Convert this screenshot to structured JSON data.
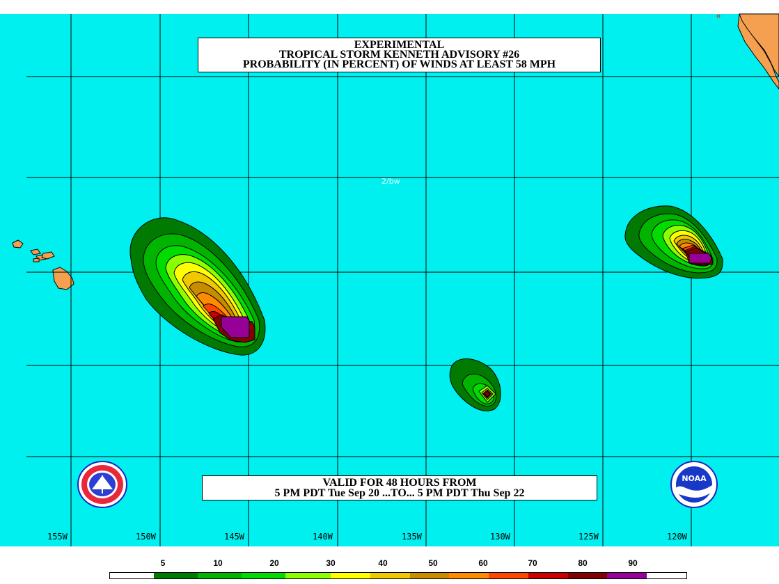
{
  "title": {
    "line1": "EXPERIMENTAL",
    "line2": "TROPICAL STORM KENNETH ADVISORY #26",
    "line3": "PROBABILITY (IN PERCENT) OF WINDS AT LEAST 58 MPH"
  },
  "valid": {
    "line1": "VALID FOR 48 HOURS FROM",
    "line2": "5 PM PDT Tue Sep 20 ...TO... 5 PM PDT Thu Sep 22"
  },
  "watermark": "2/bw",
  "longitudes": [
    "155W",
    "150W",
    "145W",
    "140W",
    "135W",
    "130W",
    "125W",
    "120W"
  ],
  "legend": {
    "ticks": [
      "5",
      "10",
      "20",
      "30",
      "40",
      "50",
      "60",
      "70",
      "80",
      "90"
    ],
    "colors": [
      "#ffffff",
      "#007a00",
      "#00b400",
      "#00dc00",
      "#8cff00",
      "#ffff00",
      "#f0c800",
      "#c88c00",
      "#ff8c00",
      "#ff4600",
      "#c80000",
      "#820000",
      "#960096"
    ]
  },
  "colors": {
    "ocean": "#00f0f0",
    "land": "#f5a050",
    "grid": "#000000"
  },
  "icons": {
    "left_logo": "nws-logo",
    "right_logo": "noaa-logo"
  }
}
